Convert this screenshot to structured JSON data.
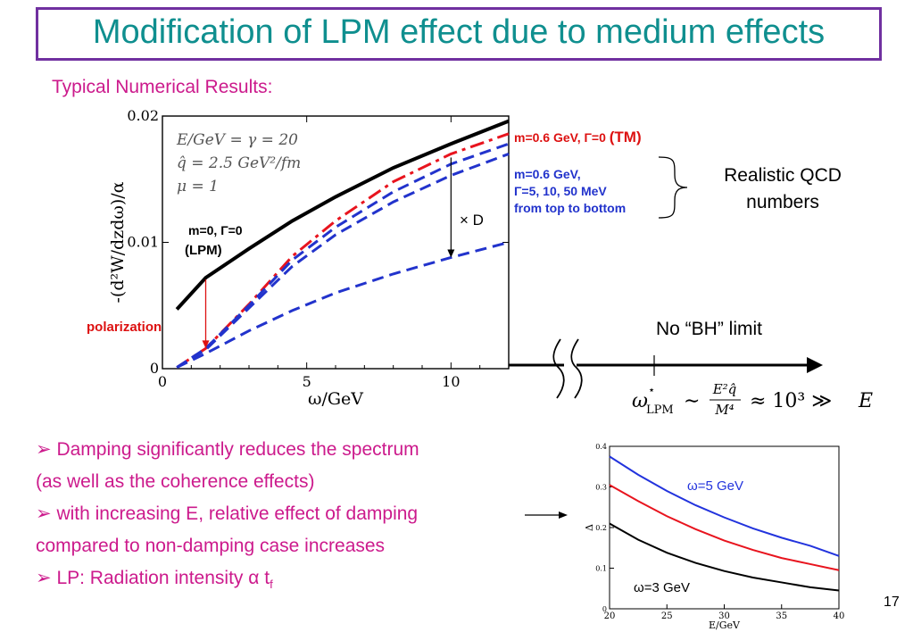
{
  "slide": {
    "title": "Modification of LPM effect due to medium effects",
    "subtitle": "Typical Numerical Results:",
    "page_number": "17",
    "bullets": [
      {
        "marker": "➢",
        "text": "Damping significantly reduces the spectrum"
      },
      {
        "marker": "",
        "text": "(as well as the coherence effects)"
      },
      {
        "marker": "➢",
        "text": "with increasing E, relative effect of damping"
      },
      {
        "marker": "",
        "text": "compared to non-damping case increases"
      },
      {
        "marker": "➢",
        "text": "LP: Radiation intensity α t",
        "sub": "f"
      }
    ]
  },
  "chart_data": [
    {
      "type": "line",
      "xlabel": "ω/GeV",
      "ylabel": "-(d²W/dzdω)/α",
      "xlim": [
        0,
        12
      ],
      "ylim": [
        0,
        0.02
      ],
      "xticks": [
        "0",
        "5",
        "10"
      ],
      "yticks": [
        "0",
        "0.01",
        "0.02"
      ],
      "params": [
        "E/GeV = γ = 20",
        "q̂ = 2.5 GeV²/fm",
        "μ = 1"
      ],
      "series": [
        {
          "name": "m=0, Γ=0 (LPM)",
          "color": "#000000",
          "dash": "solid",
          "x": [
            0.5,
            1.5,
            3,
            4.5,
            6,
            8,
            10,
            12
          ],
          "y": [
            0.0047,
            0.0072,
            0.0095,
            0.0117,
            0.0136,
            0.0159,
            0.0178,
            0.0196
          ]
        },
        {
          "name": "m=0.6 GeV, Γ=0",
          "color": "#e8141e",
          "dash": "dashdot",
          "x": [
            0.5,
            1.5,
            3,
            4.5,
            6,
            8,
            10,
            12
          ],
          "y": [
            0.0001,
            0.0016,
            0.0051,
            0.0089,
            0.0117,
            0.0148,
            0.017,
            0.0186
          ]
        },
        {
          "name": "Γ=5 MeV",
          "color": "#2233cc",
          "dash": "dashed",
          "x": [
            0.5,
            1.5,
            3,
            4.5,
            6,
            8,
            10,
            12
          ],
          "y": [
            0.0001,
            0.0016,
            0.005,
            0.0086,
            0.0112,
            0.014,
            0.0162,
            0.0178
          ]
        },
        {
          "name": "Γ=10 MeV",
          "color": "#2233cc",
          "dash": "dashed",
          "x": [
            0.5,
            1.5,
            3,
            4.5,
            6,
            8,
            10,
            12
          ],
          "y": [
            0.0001,
            0.0015,
            0.0048,
            0.0081,
            0.0106,
            0.0132,
            0.0153,
            0.017
          ]
        },
        {
          "name": "Γ=50 MeV",
          "color": "#2233cc",
          "dash": "dashed",
          "x": [
            0.5,
            1.5,
            3,
            4.5,
            6,
            8,
            10,
            12
          ],
          "y": [
            0.0001,
            0.0012,
            0.003,
            0.0046,
            0.006,
            0.0075,
            0.0088,
            0.01
          ]
        }
      ],
      "annotations": {
        "lpm_label_1": "m=0, Γ=0",
        "lpm_label_2": "(LPM)",
        "polarization": "polarization",
        "tm_prefix": "m=0.6 GeV, Γ=0 ",
        "tm_suffix": "(TM)",
        "gamma_line1": "m=0.6 GeV,",
        "gamma_line2": "Γ=5, 10, 50 MeV",
        "gamma_line3": "from top to bottom",
        "damping_factor": "× D",
        "realistic_line1": "Realistic QCD",
        "realistic_line2": "numbers",
        "no_bh_limit": "No “BH” limit",
        "formula": "ω*LPM ~ E²q̂/M⁴ ≈ 10³ ≫ E"
      }
    },
    {
      "type": "line",
      "xlabel": "E/GeV",
      "ylabel": "Δ",
      "xlim": [
        20,
        40
      ],
      "ylim": [
        0,
        0.4
      ],
      "xticks": [
        "20",
        "25",
        "30",
        "35",
        "40"
      ],
      "yticks": [
        "0",
        "0.1",
        "0.2",
        "0.3",
        "0.4"
      ],
      "series": [
        {
          "name": "ω=5 GeV",
          "color": "#2233dd",
          "x": [
            20,
            22.5,
            25,
            27.5,
            30,
            32.5,
            35,
            37.5,
            40
          ],
          "y": [
            0.375,
            0.33,
            0.29,
            0.255,
            0.225,
            0.198,
            0.175,
            0.155,
            0.13
          ]
        },
        {
          "name": "",
          "color": "#e8141e",
          "x": [
            20,
            22.5,
            25,
            27.5,
            30,
            32.5,
            35,
            37.5,
            40
          ],
          "y": [
            0.305,
            0.265,
            0.228,
            0.196,
            0.168,
            0.145,
            0.125,
            0.11,
            0.095
          ]
        },
        {
          "name": "ω=3 GeV",
          "color": "#000000",
          "x": [
            20,
            22.5,
            25,
            27.5,
            30,
            32.5,
            35,
            37.5,
            40
          ],
          "y": [
            0.21,
            0.17,
            0.138,
            0.113,
            0.093,
            0.077,
            0.065,
            0.053,
            0.045
          ]
        }
      ]
    }
  ]
}
